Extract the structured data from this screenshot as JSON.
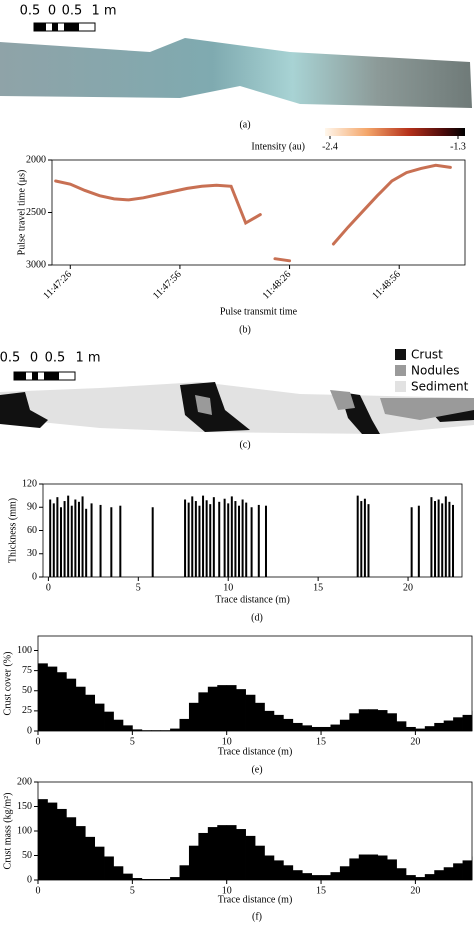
{
  "figure": {
    "scale_bar_labels": [
      "0.5",
      "0",
      "0.5",
      "1 m"
    ],
    "panel_labels": [
      "(a)",
      "(b)",
      "(c)",
      "(d)",
      "(e)",
      "(f)"
    ],
    "legend": [
      {
        "name": "Crust",
        "color": "#111111"
      },
      {
        "name": "Nodules",
        "color": "#9a9a9a"
      },
      {
        "name": "Sediment",
        "color": "#e2e2e2"
      }
    ]
  },
  "chart_data": [
    {
      "type": "line",
      "xlabel": "Pulse transmit time",
      "ylabel": "Pulse travel time (μs)",
      "colorbar": {
        "label": "Intensity (au)",
        "clim": [
          -2.4,
          -1.3
        ],
        "ticks": [
          -2.4,
          -1.3
        ]
      },
      "x": [
        -4,
        0,
        4,
        8,
        12,
        16,
        20,
        24,
        28,
        32,
        36,
        40,
        44,
        48,
        52,
        56,
        60,
        64,
        68,
        72,
        76,
        80,
        84,
        88,
        92,
        96,
        100,
        104
      ],
      "series": [
        {
          "color": "#b5401a",
          "values": [
            2200,
            2230,
            2290,
            2340,
            2370,
            2380,
            2360,
            2330,
            2300,
            2270,
            2250,
            2240,
            2250,
            2600,
            2520,
            null,
            null,
            null,
            null,
            2800,
            2640,
            2490,
            2340,
            2200,
            2120,
            2080,
            2050,
            2070
          ]
        },
        {
          "color": "#b5401a",
          "values": [
            null,
            null,
            null,
            null,
            null,
            null,
            null,
            null,
            null,
            null,
            null,
            null,
            null,
            null,
            null,
            2940,
            2960,
            null,
            null,
            null,
            null,
            null,
            null,
            null,
            null,
            null,
            null,
            null
          ]
        }
      ],
      "xlim": [
        -5,
        108
      ],
      "xticks": [
        {
          "value": 0,
          "label": "11:47:26"
        },
        {
          "value": 30,
          "label": "11:47:56"
        },
        {
          "value": 60,
          "label": "11:48:26"
        },
        {
          "value": 90,
          "label": "11:48:56"
        }
      ],
      "ylim": [
        3000,
        2000
      ],
      "yticks": [
        2000,
        2500,
        3000
      ]
    },
    {
      "type": "bar",
      "xlabel": "Trace distance (m)",
      "ylabel": "Thickness (mm)",
      "color": "#000000",
      "x": [
        0.1,
        0.3,
        0.5,
        0.7,
        0.9,
        1.1,
        1.3,
        1.5,
        1.7,
        1.9,
        2.1,
        2.4,
        2.9,
        3.5,
        4.0,
        5.8,
        7.6,
        7.8,
        8.0,
        8.2,
        8.4,
        8.6,
        8.8,
        9.0,
        9.2,
        9.5,
        9.8,
        10.0,
        10.2,
        10.4,
        10.6,
        10.8,
        11.0,
        11.3,
        11.7,
        12.1,
        17.2,
        17.4,
        17.6,
        17.8,
        20.2,
        20.6,
        21.3,
        21.5,
        21.7,
        21.9,
        22.1,
        22.3,
        22.5
      ],
      "values": [
        100,
        95,
        103,
        90,
        98,
        105,
        92,
        100,
        97,
        104,
        88,
        95,
        93,
        90,
        92,
        90,
        100,
        96,
        104,
        98,
        92,
        105,
        99,
        94,
        103,
        97,
        101,
        95,
        104,
        98,
        92,
        100,
        96,
        90,
        93,
        92,
        105,
        98,
        101,
        94,
        90,
        92,
        103,
        98,
        100,
        95,
        104,
        97,
        93
      ],
      "xlim": [
        -0.3,
        23
      ],
      "xticks": [
        0,
        5,
        10,
        15,
        20
      ],
      "ylim": [
        0,
        120
      ],
      "yticks": [
        0,
        30,
        60,
        90,
        120
      ]
    },
    {
      "type": "step",
      "xlabel": "Trace distance (m)",
      "ylabel": "Crust cover (%)",
      "color": "#000000",
      "x": [
        0,
        0.5,
        1,
        1.5,
        2,
        2.5,
        3,
        3.5,
        4,
        4.5,
        5,
        5.5,
        6,
        6.5,
        7,
        7.5,
        8,
        8.5,
        9,
        9.5,
        10,
        10.5,
        11,
        11.5,
        12,
        12.5,
        13,
        13.5,
        14,
        14.5,
        15,
        15.5,
        16,
        16.5,
        17,
        17.5,
        18,
        18.5,
        19,
        19.5,
        20,
        20.5,
        21,
        21.5,
        22,
        22.5,
        23
      ],
      "values": [
        84,
        80,
        73,
        65,
        55,
        45,
        34,
        24,
        14,
        7,
        2,
        1,
        1,
        1,
        3,
        15,
        35,
        48,
        55,
        57,
        57,
        52,
        45,
        35,
        25,
        20,
        15,
        10,
        7,
        5,
        5,
        8,
        14,
        22,
        27,
        27,
        26,
        22,
        12,
        5,
        3,
        6,
        10,
        13,
        17,
        20,
        25
      ],
      "xlim": [
        0,
        23
      ],
      "xticks": [
        0,
        5,
        10,
        15,
        20
      ],
      "ylim": [
        0,
        118
      ],
      "yticks": [
        0,
        25,
        50,
        75,
        100
      ]
    },
    {
      "type": "step",
      "xlabel": "Trace distance (m)",
      "ylabel": "Crust mass (kg/m²)",
      "color": "#000000",
      "x": [
        0,
        0.5,
        1,
        1.5,
        2,
        2.5,
        3,
        3.5,
        4,
        4.5,
        5,
        5.5,
        6,
        6.5,
        7,
        7.5,
        8,
        8.5,
        9,
        9.5,
        10,
        10.5,
        11,
        11.5,
        12,
        12.5,
        13,
        13.5,
        14,
        14.5,
        15,
        15.5,
        16,
        16.5,
        17,
        17.5,
        18,
        18.5,
        19,
        19.5,
        20,
        20.5,
        21,
        21.5,
        22,
        22.5,
        23
      ],
      "values": [
        165,
        158,
        145,
        128,
        110,
        88,
        68,
        48,
        28,
        13,
        4,
        2,
        2,
        2,
        6,
        30,
        70,
        96,
        108,
        112,
        112,
        104,
        90,
        70,
        50,
        40,
        30,
        20,
        14,
        10,
        10,
        16,
        28,
        44,
        52,
        52,
        50,
        42,
        24,
        10,
        6,
        12,
        20,
        26,
        34,
        40,
        48
      ],
      "xlim": [
        0,
        23
      ],
      "xticks": [
        0,
        5,
        10,
        15,
        20
      ],
      "ylim": [
        0,
        200
      ],
      "yticks": [
        0,
        50,
        100,
        150,
        200
      ]
    }
  ]
}
